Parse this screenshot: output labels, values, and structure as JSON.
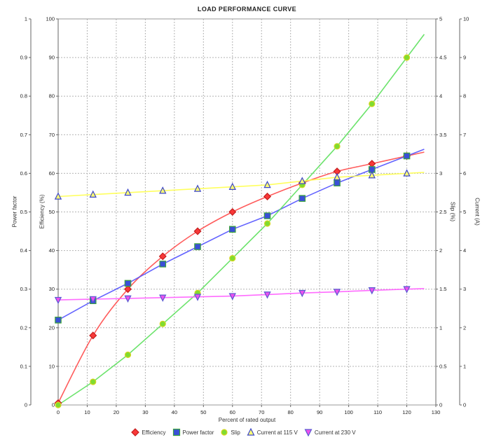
{
  "title": "LOAD PERFORMANCE CURVE",
  "chart_data": {
    "type": "line",
    "title": "LOAD PERFORMANCE CURVE",
    "xlabel": "Percent of rated output",
    "x": [
      0,
      12,
      24,
      36,
      48,
      60,
      72,
      84,
      96,
      108,
      120
    ],
    "x_axis": {
      "label": "Percent of rated output",
      "min": 0,
      "max": 130,
      "tick_step": 10
    },
    "axes": [
      {
        "id": "power_factor",
        "label": "Power factor",
        "side": "left",
        "min": 0,
        "max": 1,
        "tick_step": 0.1
      },
      {
        "id": "efficiency",
        "label": "Efficiency (%)",
        "side": "left",
        "min": 0,
        "max": 100,
        "tick_step": 10
      },
      {
        "id": "slip",
        "label": "Slip (%)",
        "side": "right",
        "min": 0,
        "max": 5,
        "tick_step": 0.5
      },
      {
        "id": "current",
        "label": "Current (A)",
        "side": "right",
        "min": 0,
        "max": 10,
        "tick_step": 1
      }
    ],
    "series": [
      {
        "name": "Efficiency",
        "axis": "efficiency",
        "marker": "diamond",
        "line_color": "#ff4a4a",
        "marker_fill": "#f83838",
        "marker_edge": "#c41e1e",
        "smooth": true,
        "values": [
          0.5,
          18,
          30,
          38.5,
          45,
          50,
          54,
          57.5,
          60.5,
          62.5,
          64.5
        ]
      },
      {
        "name": "Power factor",
        "axis": "power_factor",
        "marker": "square",
        "line_color": "#5252ff",
        "marker_fill": "#3a4fd7",
        "marker_edge": "#3da33d",
        "smooth": false,
        "values": [
          0.22,
          0.27,
          0.315,
          0.365,
          0.41,
          0.455,
          0.49,
          0.535,
          0.575,
          0.61,
          0.645
        ]
      },
      {
        "name": "Slip",
        "axis": "slip",
        "marker": "circle",
        "line_color": "#5ce05c",
        "marker_fill": "#80dc30",
        "marker_edge": "#d6d61e",
        "smooth": false,
        "values": [
          0,
          0.3,
          0.65,
          1.05,
          1.45,
          1.9,
          2.35,
          2.85,
          3.35,
          3.9,
          4.5
        ]
      },
      {
        "name": "Current at 115 V",
        "axis": "current",
        "marker": "triangle-up",
        "line_color": "#ffff4d",
        "marker_fill": "#ffff73",
        "marker_edge": "#3c46c8",
        "smooth": false,
        "values": [
          5.4,
          5.45,
          5.5,
          5.55,
          5.6,
          5.65,
          5.7,
          5.8,
          5.9,
          5.95,
          6.0
        ]
      },
      {
        "name": "Current at 230 V",
        "axis": "current",
        "marker": "triangle-down",
        "line_color": "#ff5cff",
        "marker_fill": "#ee50ee",
        "marker_edge": "#5a5ad2",
        "smooth": false,
        "values": [
          2.72,
          2.74,
          2.76,
          2.78,
          2.8,
          2.82,
          2.86,
          2.9,
          2.93,
          2.97,
          3.0
        ]
      }
    ],
    "legend_position": "bottom",
    "grid": true,
    "layout_hints": {
      "extend_lines_to_x": 126
    }
  },
  "colors": {
    "grid": "#b4b4b4",
    "plot_border": "#999999",
    "axis_line": "#666666",
    "tick_label": "#222222"
  }
}
